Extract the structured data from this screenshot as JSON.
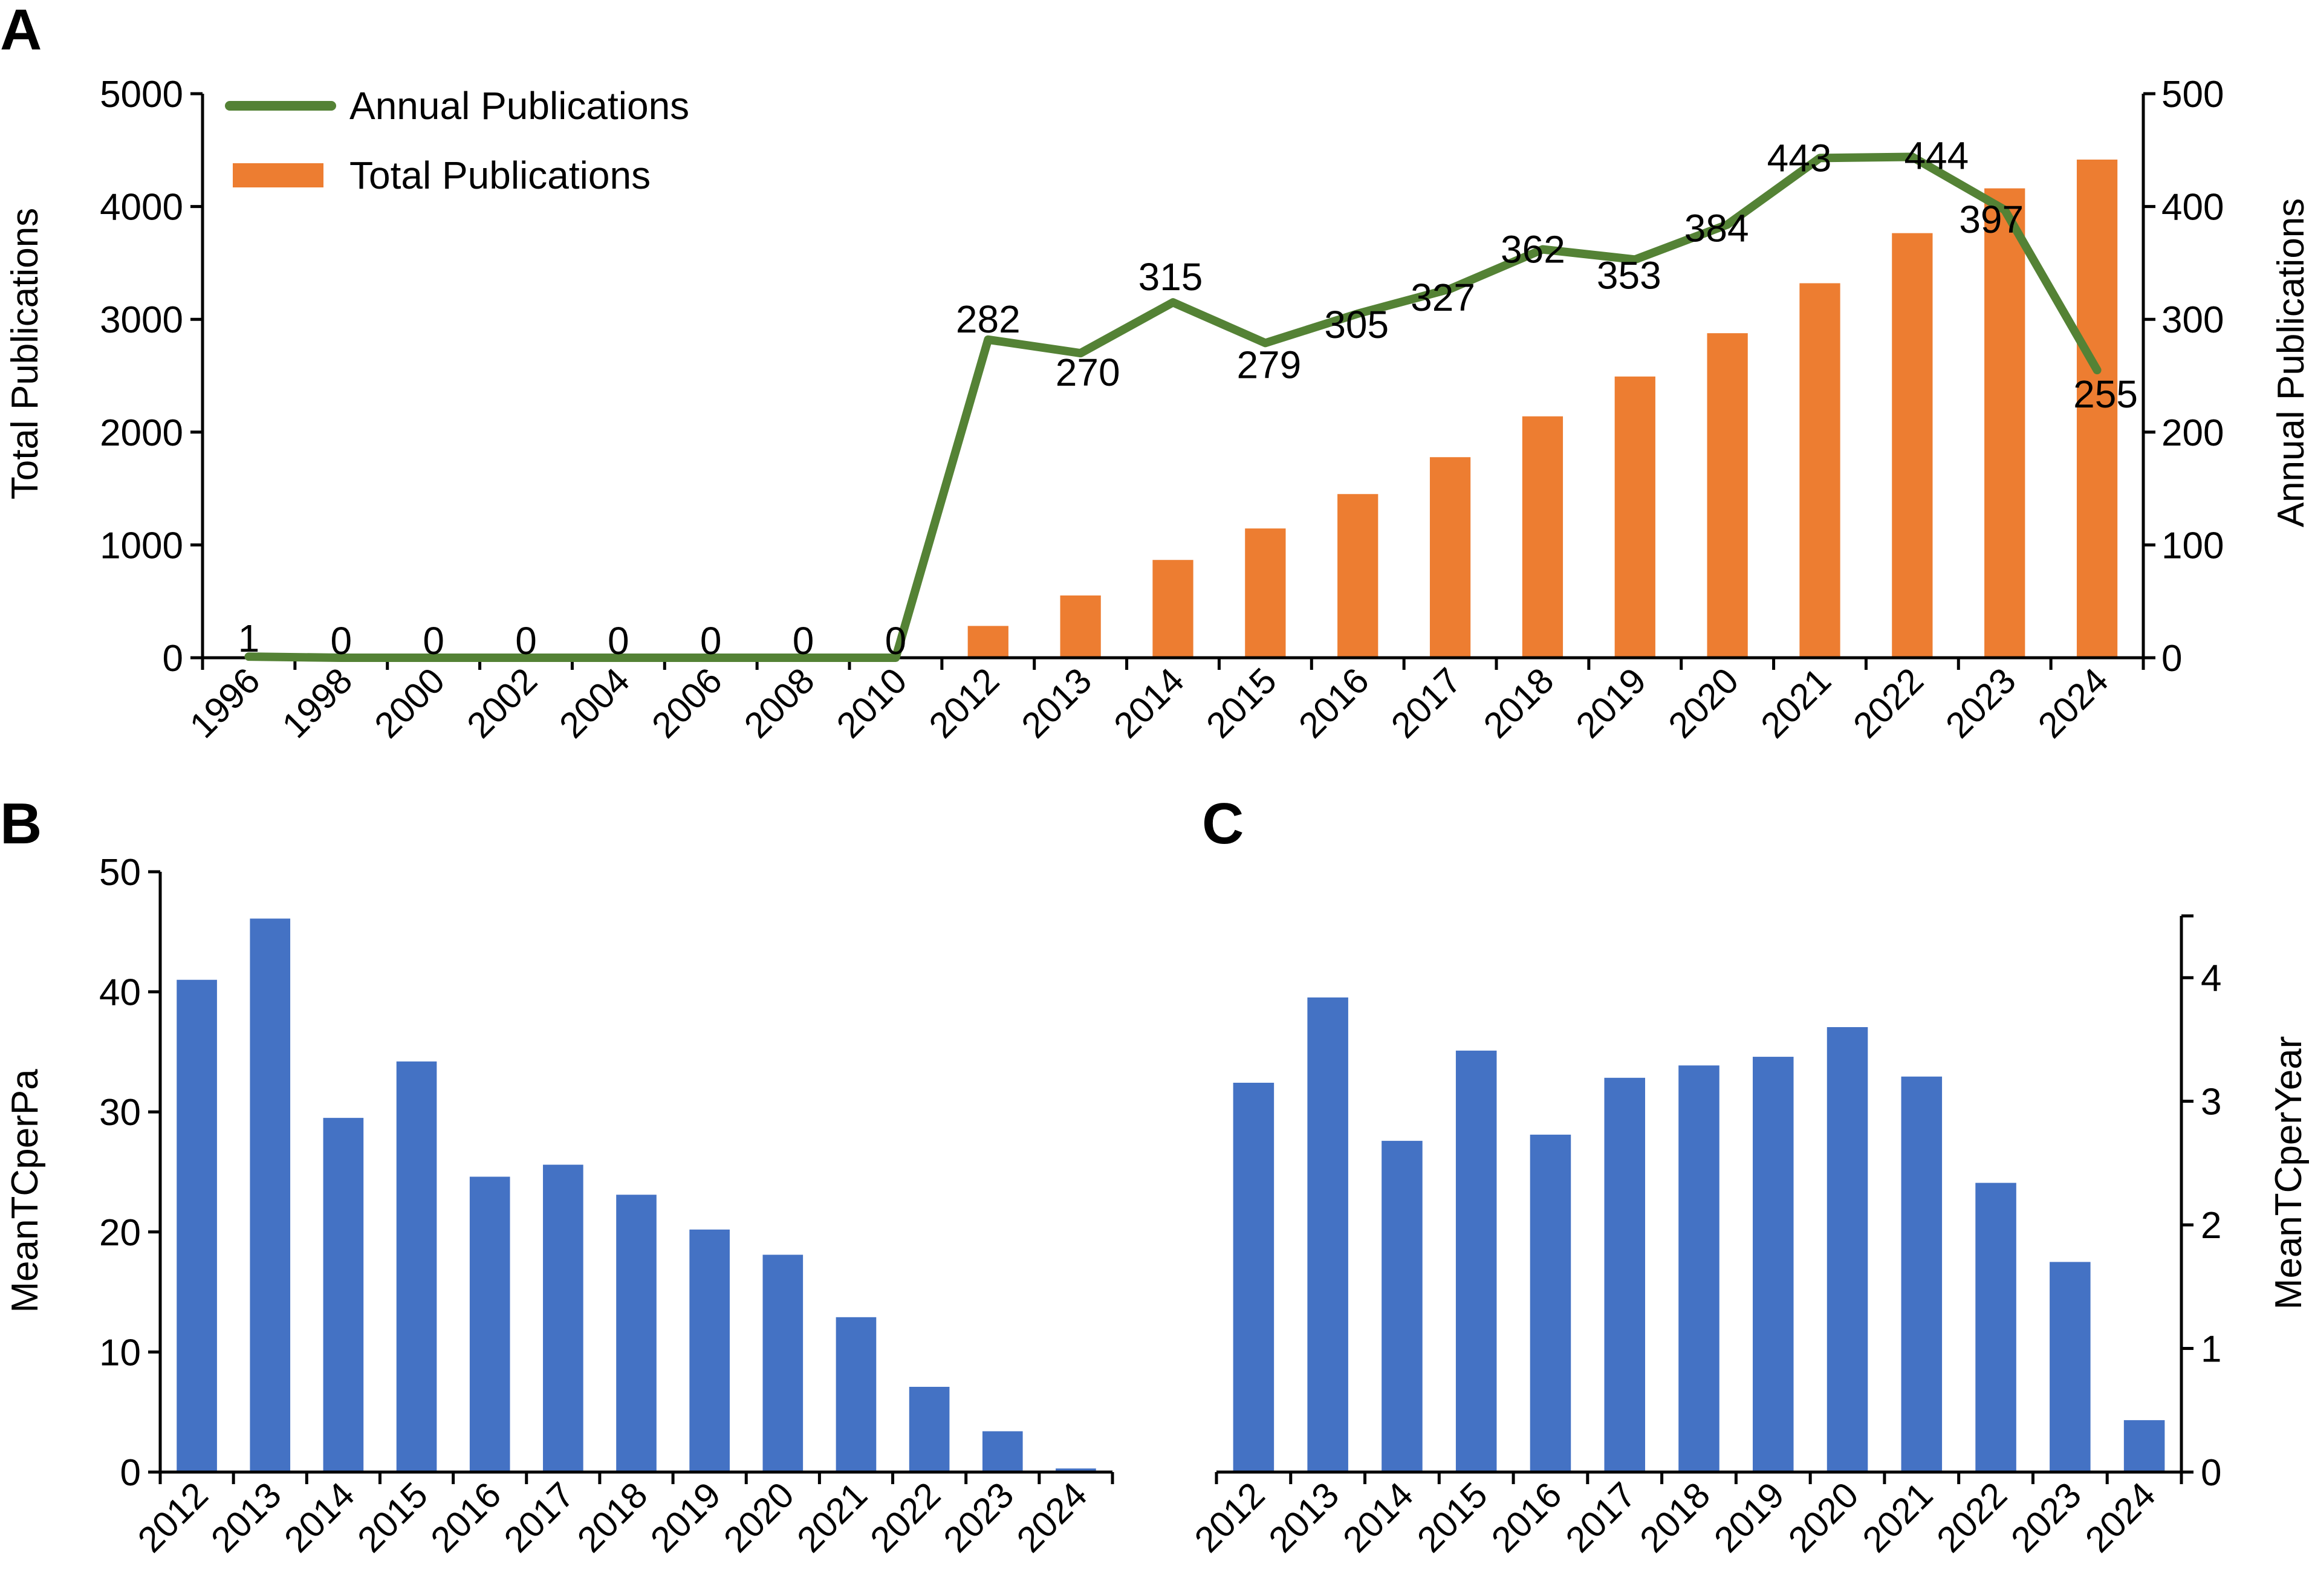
{
  "chart_data": [
    {
      "panel": "A",
      "type": "bar+line",
      "legend": [
        "Annual Publications",
        "Total Publications"
      ],
      "legend_position": "top-left",
      "ylabel_left": "Total Publications",
      "ylabel_right": "Annual Publications",
      "ylim_left": [
        0,
        5000
      ],
      "ylim_right": [
        0,
        500
      ],
      "yticks_left": [
        "0",
        "1000",
        "2000",
        "3000",
        "4000",
        "5000"
      ],
      "yticks_right": [
        "0",
        "100",
        "200",
        "300",
        "400",
        "500"
      ],
      "categories": [
        "1996",
        "1998",
        "2000",
        "2002",
        "2004",
        "2006",
        "2008",
        "2010",
        "2012",
        "2013",
        "2014",
        "2015",
        "2016",
        "2017",
        "2018",
        "2019",
        "2020",
        "2021",
        "2022",
        "2023",
        "2024"
      ],
      "series": [
        {
          "name": "Total Publications",
          "type": "bar",
          "axis": "left",
          "color": "#ED7D31",
          "values": [
            null,
            null,
            null,
            null,
            null,
            null,
            null,
            null,
            282,
            552,
            867,
            1146,
            1451,
            1778,
            2140,
            2493,
            2877,
            3320,
            3764,
            4161,
            4416
          ]
        },
        {
          "name": "Annual Publications",
          "type": "line",
          "axis": "right",
          "color": "#548235",
          "values": [
            1,
            0,
            0,
            0,
            0,
            0,
            0,
            0,
            282,
            270,
            315,
            279,
            305,
            327,
            362,
            353,
            384,
            443,
            444,
            397,
            255
          ],
          "labels": [
            "1",
            "0",
            "0",
            "0",
            "0",
            "0",
            "0",
            "0",
            "282",
            "270",
            "315",
            "279",
            "305",
            "327",
            "362",
            "353",
            "384",
            "443",
            "444",
            "397",
            "255"
          ]
        }
      ]
    },
    {
      "panel": "B",
      "type": "bar",
      "ylabel": "MeanTCperPa",
      "ylim": [
        0,
        50
      ],
      "yticks": [
        "0",
        "10",
        "20",
        "30",
        "40",
        "50"
      ],
      "categories": [
        "2012",
        "2013",
        "2014",
        "2015",
        "2016",
        "2017",
        "2018",
        "2019",
        "2020",
        "2021",
        "2022",
        "2023",
        "2024"
      ],
      "color": "#4472C4",
      "values": [
        41,
        46.1,
        29.5,
        34.2,
        24.6,
        25.6,
        23.1,
        20.2,
        18.1,
        12.9,
        7.1,
        3.4,
        0.3
      ]
    },
    {
      "panel": "C",
      "type": "bar",
      "ylabel": "MeanTCperYear",
      "ylim": [
        0,
        4.5
      ],
      "yticks": [
        "0",
        "1",
        "2",
        "3",
        "4"
      ],
      "categories": [
        "2012",
        "2013",
        "2014",
        "2015",
        "2016",
        "2017",
        "2018",
        "2019",
        "2020",
        "2021",
        "2022",
        "2023",
        "2024"
      ],
      "color": "#4472C4",
      "values": [
        3.15,
        3.84,
        2.68,
        3.41,
        2.73,
        3.19,
        3.29,
        3.36,
        3.6,
        3.2,
        2.34,
        1.7,
        0.42
      ]
    }
  ]
}
